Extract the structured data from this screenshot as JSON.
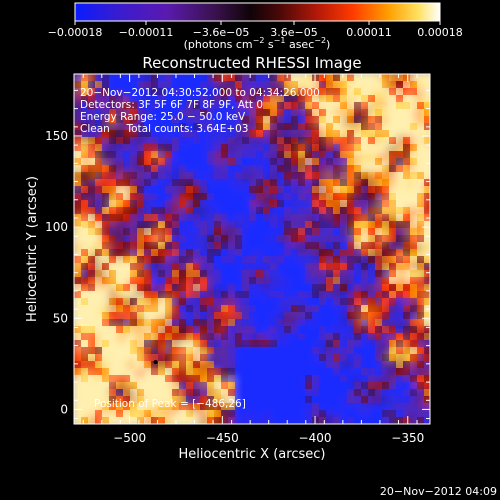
{
  "chart_data": {
    "type": "heatmap",
    "title": "Reconstructed RHESSI Image",
    "xlabel": "Heliocentric X (arcsec)",
    "ylabel": "Heliocentric Y (arcsec)",
    "xlim": [
      -530,
      -338
    ],
    "ylim": [
      -8,
      184
    ],
    "x_ticks": [
      -500,
      -450,
      -400,
      -350
    ],
    "x_tick_labels": [
      "−500",
      "−450",
      "−400",
      "−350"
    ],
    "y_ticks": [
      0,
      50,
      100,
      150
    ],
    "y_tick_labels": [
      "0",
      "50",
      "100",
      "150"
    ],
    "colorbar": {
      "min": -0.00018,
      "max": 0.00018,
      "ticks": [
        -0.00018,
        -0.00011,
        -3.6e-05,
        3.6e-05,
        0.00011,
        0.00018
      ],
      "tick_labels": [
        "−0.00018",
        "−0.00011",
        "−3.6e−05",
        "3.6e−05",
        "0.00011",
        "0.00018"
      ],
      "unit_main": "(photons cm",
      "unit_sup1": "−2",
      "unit_mid": " s",
      "unit_sup2": "−1",
      "unit_mid2": " asec",
      "unit_sup3": "−2",
      "unit_end": ")"
    },
    "annotations": [
      "20−Nov−2012 04:30:52.000 to 04:34:26.000",
      "Detectors: 3F 5F 6F 7F 8F 9F, Att 0",
      "Energy Range: 25.0 − 50.0 keV",
      "Clean     Total counts: 3.64E+03"
    ],
    "peak_label": "Position of Peak = [−486,26]",
    "peak": {
      "x": -486,
      "y": 26
    },
    "footer": "20−Nov−2012 04:09",
    "grid": false,
    "colormap": "blue-purple-red-yellow-white"
  }
}
